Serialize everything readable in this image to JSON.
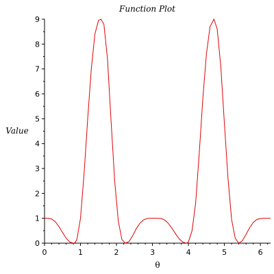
{
  "chart_data": {
    "type": "line",
    "title": "Function Plot",
    "xlabel": "θ",
    "ylabel": "Value",
    "xlim": [
      0,
      6.2832
    ],
    "ylim": [
      0,
      9
    ],
    "x_ticks": [
      0,
      1,
      2,
      3,
      4,
      5,
      6
    ],
    "x_tick_labels": [
      "0",
      "1",
      "2",
      "3",
      "4",
      "5",
      "6"
    ],
    "y_ticks": [
      0,
      1,
      2,
      3,
      4,
      5,
      6,
      7,
      8,
      9
    ],
    "y_tick_labels": [
      "0",
      "1",
      "2",
      "3",
      "4",
      "5",
      "6",
      "7",
      "8",
      "9"
    ],
    "grid": false,
    "series": [
      {
        "color": "#e00000",
        "x": [
          0.0,
          0.1,
          0.2,
          0.3,
          0.4,
          0.5,
          0.6,
          0.7,
          0.8,
          0.85,
          0.9,
          1.0,
          1.1,
          1.2,
          1.3,
          1.4,
          1.5,
          1.57,
          1.65,
          1.75,
          1.85,
          1.95,
          2.05,
          2.15,
          2.25,
          2.35,
          2.45,
          2.55,
          2.65,
          2.75,
          2.85,
          2.95,
          3.05,
          3.14,
          3.25,
          3.35,
          3.45,
          3.55,
          3.65,
          3.75,
          3.85,
          3.95,
          4.0,
          4.1,
          4.2,
          4.3,
          4.4,
          4.5,
          4.6,
          4.71,
          4.8,
          4.9,
          5.0,
          5.1,
          5.2,
          5.3,
          5.4,
          5.5,
          5.6,
          5.7,
          5.8,
          5.9,
          6.0,
          6.1,
          6.2,
          6.28
        ],
        "y": [
          1.0,
          1.0,
          0.97,
          0.86,
          0.67,
          0.43,
          0.2,
          0.05,
          0.0,
          0.02,
          0.15,
          1.0,
          2.8,
          5.0,
          7.0,
          8.4,
          8.95,
          9.0,
          8.8,
          7.4,
          4.9,
          2.5,
          0.9,
          0.15,
          0.0,
          0.07,
          0.3,
          0.58,
          0.8,
          0.93,
          0.99,
          1.0,
          1.0,
          1.0,
          0.99,
          0.92,
          0.78,
          0.58,
          0.36,
          0.16,
          0.04,
          0.0,
          0.05,
          0.5,
          1.6,
          3.6,
          5.8,
          7.6,
          8.7,
          9.0,
          8.6,
          7.1,
          4.8,
          2.6,
          0.95,
          0.2,
          0.0,
          0.1,
          0.35,
          0.62,
          0.83,
          0.95,
          0.99,
          1.0,
          1.0,
          1.0
        ]
      }
    ]
  }
}
